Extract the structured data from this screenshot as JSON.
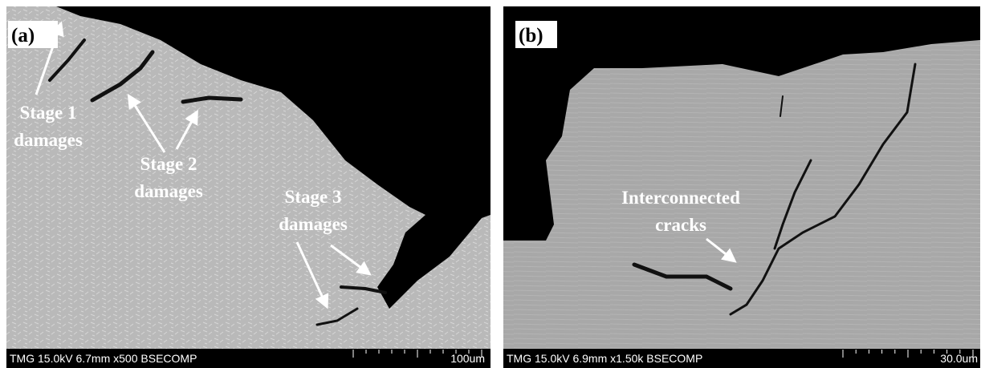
{
  "panels": [
    {
      "label": "(a)",
      "info": "TMG 15.0kV 6.7mm x500 BSECOMP",
      "scale": "100um",
      "annotations": [
        {
          "lines": [
            "Stage 1",
            "damages"
          ]
        },
        {
          "lines": [
            "Stage 2",
            "damages"
          ]
        },
        {
          "lines": [
            "Stage 3",
            "damages"
          ]
        }
      ]
    },
    {
      "label": "(b)",
      "info": "TMG 15.0kV 6.9mm x1.50k BSECOMP",
      "scale": "30.0um",
      "annotations": [
        {
          "lines": [
            "Interconnected",
            "cracks"
          ]
        }
      ]
    }
  ]
}
